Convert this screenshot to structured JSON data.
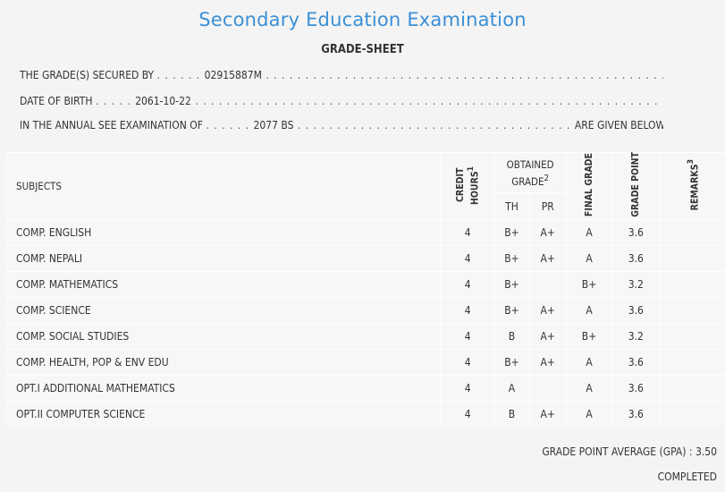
{
  "header": {
    "title": "Secondary Education Examination",
    "subtitle": "GRADE-SHEET"
  },
  "info": {
    "secured_label": "THE GRADE(S) SECURED BY",
    "symbol_no": "02915887M",
    "dob_label": "DATE OF BIRTH",
    "dob": "2061-10-22",
    "exam_label": "IN THE ANNUAL SEE EXAMINATION OF",
    "exam_year": "2077 BS",
    "given_below": "ARE GIVEN BELOW"
  },
  "table": {
    "headers": {
      "subjects": "SUBJECTS",
      "credit_hours": "CREDIT HOURS",
      "credit_sup": "1",
      "obtained_grade": "OBTAINED GRADE",
      "obtained_sup": "2",
      "th": "TH",
      "pr": "PR",
      "final_grade": "FINAL GRADE",
      "grade_point": "GRADE POINT",
      "remarks": "REMARKS",
      "remarks_sup": "3"
    },
    "rows": [
      {
        "subject": "COMP. ENGLISH",
        "credit": "4",
        "th": "B+",
        "pr": "A+",
        "final": "A",
        "gp": "3.6",
        "remarks": ""
      },
      {
        "subject": "COMP. NEPALI",
        "credit": "4",
        "th": "B+",
        "pr": "A+",
        "final": "A",
        "gp": "3.6",
        "remarks": ""
      },
      {
        "subject": "COMP. MATHEMATICS",
        "credit": "4",
        "th": "B+",
        "pr": "",
        "final": "B+",
        "gp": "3.2",
        "remarks": ""
      },
      {
        "subject": "COMP. SCIENCE",
        "credit": "4",
        "th": "B+",
        "pr": "A+",
        "final": "A",
        "gp": "3.6",
        "remarks": ""
      },
      {
        "subject": "COMP. SOCIAL STUDIES",
        "credit": "4",
        "th": "B",
        "pr": "A+",
        "final": "B+",
        "gp": "3.2",
        "remarks": ""
      },
      {
        "subject": "COMP. HEALTH, POP & ENV EDU",
        "credit": "4",
        "th": "B+",
        "pr": "A+",
        "final": "A",
        "gp": "3.6",
        "remarks": ""
      },
      {
        "subject": "OPT.I ADDITIONAL MATHEMATICS",
        "credit": "4",
        "th": "A",
        "pr": "",
        "final": "A",
        "gp": "3.6",
        "remarks": ""
      },
      {
        "subject": "OPT.II COMPUTER SCIENCE",
        "credit": "4",
        "th": "B",
        "pr": "A+",
        "final": "A",
        "gp": "3.6",
        "remarks": ""
      }
    ]
  },
  "summary": {
    "gpa_label": "GRADE POINT AVERAGE (GPA) :",
    "gpa": "3.50",
    "status": "COMPLETED"
  }
}
